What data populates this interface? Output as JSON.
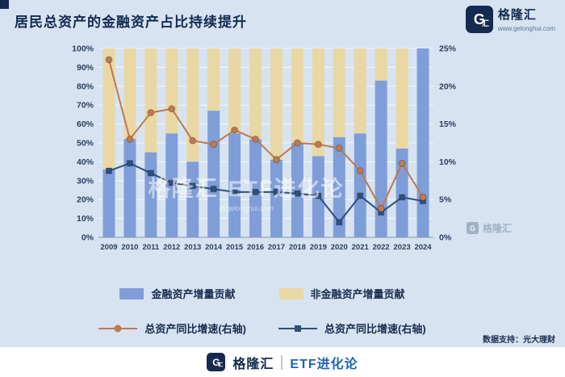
{
  "page": {
    "title": "居民总资产的金融资产占比持续提升",
    "data_support": "数据支持：光大理财"
  },
  "brand": {
    "logo_letter": "G",
    "logo_char": "汇",
    "name": "格隆汇",
    "url": "www.gelonghui.com",
    "footer_name": "格隆汇",
    "footer_product": "ETF进化论"
  },
  "watermark": {
    "text1": "格隆汇",
    "text2": "ETF进化论",
    "sub": "@gelonghui.com",
    "corner_logo": "G",
    "corner": "格隆汇"
  },
  "chart_data": {
    "type": "bar",
    "subtype": "stacked-bar-with-dual-axis-lines",
    "title": "居民总资产的金融资产占比持续提升",
    "categories": [
      "2009",
      "2010",
      "2011",
      "2012",
      "2013",
      "2014",
      "2015",
      "2016",
      "2017",
      "2018",
      "2019",
      "2020",
      "2021",
      "2022",
      "2023",
      "2024"
    ],
    "bar_series": [
      {
        "name": "金融资产增量贡献",
        "color": "#7f9ed9",
        "values": [
          36,
          52,
          45,
          55,
          40,
          67,
          55,
          52,
          41,
          50,
          43,
          53,
          55,
          83,
          47,
          100
        ]
      },
      {
        "name": "非金融资产增量贡献",
        "color": "#e9d8a4",
        "values": [
          64,
          48,
          55,
          45,
          60,
          33,
          45,
          48,
          59,
          50,
          57,
          47,
          45,
          17,
          53,
          0
        ]
      }
    ],
    "line_series": [
      {
        "name": "总资产同比增速(右轴)",
        "color": "#bf7950",
        "marker": "circle",
        "axis": "right",
        "values": [
          23.5,
          13.0,
          16.5,
          17.0,
          12.8,
          12.3,
          14.2,
          13.0,
          10.3,
          12.5,
          12.3,
          11.8,
          8.8,
          3.8,
          9.8,
          5.3
        ]
      },
      {
        "name": "总资产同比增速(右轴)",
        "color": "#2f4f7d",
        "marker": "square",
        "axis": "right",
        "values": [
          8.8,
          9.8,
          8.5,
          7.2,
          6.8,
          6.4,
          6.0,
          6.0,
          6.0,
          5.8,
          5.5,
          2.0,
          5.5,
          3.3,
          5.3,
          4.8
        ]
      }
    ],
    "left_axis": {
      "min": 0,
      "max": 100,
      "step": 10,
      "unit": "%"
    },
    "right_axis": {
      "min": 0,
      "max": 25,
      "step": 5,
      "unit": "%"
    },
    "grid": true,
    "legend_position": "bottom"
  }
}
